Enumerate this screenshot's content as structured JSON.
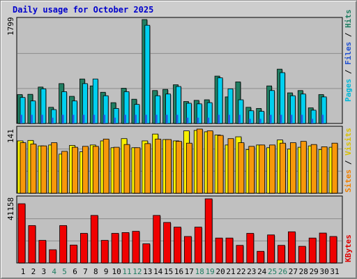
{
  "title": "Daily usage for October 2025",
  "colors": {
    "pages": "#00d0f0",
    "files": "#2060e0",
    "hits": "#207e62",
    "visits": "#f8f000",
    "sites": "#f8980a",
    "kbytes": "#f00000",
    "background": "#c0c0c0",
    "grid": "#8c8c8c",
    "weekend_label": "#207e62",
    "weekday_label": "#000000"
  },
  "legend": {
    "top": [
      {
        "text": "Pages",
        "color": "#00b8d8"
      },
      {
        "text": " / ",
        "color": "#000000"
      },
      {
        "text": "Files",
        "color": "#2050d0"
      },
      {
        "text": " / ",
        "color": "#000000"
      },
      {
        "text": "Hits",
        "color": "#207e62"
      }
    ],
    "middle": [
      {
        "text": "Sites",
        "color": "#f08000"
      },
      {
        "text": " / ",
        "color": "#000000"
      },
      {
        "text": "Visits",
        "color": "#d8c000"
      }
    ],
    "bottom": [
      {
        "text": "KBytes",
        "color": "#e00000"
      }
    ]
  },
  "chart_data": [
    {
      "type": "bar",
      "panel": "hits-files-pages",
      "ymax_label": "1799",
      "ylim": [
        0,
        1799
      ],
      "grid": true,
      "x": [
        "1",
        "2",
        "3",
        "4",
        "5",
        "6",
        "7",
        "8",
        "9",
        "10",
        "11",
        "12",
        "13",
        "14",
        "15",
        "16",
        "17",
        "18",
        "19",
        "20",
        "21",
        "22",
        "23",
        "24",
        "25",
        "26",
        "27",
        "28",
        "29",
        "30",
        "31"
      ],
      "weekend_days": [
        "4",
        "5",
        "11",
        "12",
        "18",
        "19",
        "25",
        "26"
      ],
      "series": [
        {
          "name": "Hits",
          "values": [
            500,
            505,
            630,
            280,
            690,
            470,
            770,
            650,
            540,
            360,
            610,
            420,
            1799,
            570,
            590,
            670,
            380,
            400,
            410,
            820,
            460,
            720,
            280,
            260,
            650,
            940,
            530,
            570,
            270,
            500,
            0
          ]
        },
        {
          "name": "Files",
          "values": [
            150,
            150,
            150,
            100,
            150,
            150,
            150,
            150,
            150,
            100,
            150,
            150,
            150,
            150,
            150,
            150,
            100,
            100,
            100,
            150,
            150,
            150,
            80,
            80,
            150,
            150,
            150,
            150,
            80,
            150,
            0
          ]
        },
        {
          "name": "Pages",
          "values": [
            450,
            390,
            600,
            240,
            550,
            390,
            690,
            770,
            480,
            260,
            550,
            330,
            1700,
            480,
            510,
            640,
            350,
            340,
            360,
            790,
            600,
            410,
            220,
            210,
            570,
            880,
            480,
            510,
            230,
            460,
            0
          ]
        }
      ]
    },
    {
      "type": "bar",
      "panel": "visits-sites",
      "ymax_label": "141",
      "ylim": [
        0,
        141
      ],
      "grid": true,
      "x": [
        "1",
        "2",
        "3",
        "4",
        "5",
        "6",
        "7",
        "8",
        "9",
        "10",
        "11",
        "12",
        "13",
        "14",
        "15",
        "16",
        "17",
        "18",
        "19",
        "20",
        "21",
        "22",
        "23",
        "24",
        "25",
        "26",
        "27",
        "28",
        "29",
        "30",
        "31"
      ],
      "series": [
        {
          "name": "Visits",
          "values": [
            115,
            116,
            104,
            106,
            86,
            105,
            91,
            106,
            115,
            100,
            120,
            100,
            115,
            130,
            118,
            115,
            137,
            138,
            135,
            128,
            106,
            124,
            96,
            106,
            100,
            117,
            97,
            101,
            104,
            96,
            101
          ]
        },
        {
          "name": "Sites",
          "values": [
            111,
            108,
            104,
            111,
            92,
            101,
            103,
            103,
            119,
            101,
            107,
            100,
            109,
            119,
            118,
            114,
            110,
            141,
            137,
            127,
            120,
            111,
            103,
            106,
            106,
            110,
            111,
            114,
            107,
            102,
            110
          ]
        }
      ]
    },
    {
      "type": "bar",
      "panel": "kbytes",
      "ymax_label": "41158",
      "ylim": [
        0,
        41158
      ],
      "grid": true,
      "x": [
        "1",
        "2",
        "3",
        "4",
        "5",
        "6",
        "7",
        "8",
        "9",
        "10",
        "11",
        "12",
        "13",
        "14",
        "15",
        "16",
        "17",
        "18",
        "19",
        "20",
        "21",
        "22",
        "23",
        "24",
        "25",
        "26",
        "27",
        "28",
        "29",
        "30",
        "31"
      ],
      "series": [
        {
          "name": "KBytes",
          "values": [
            38000,
            24000,
            14500,
            8500,
            24000,
            11500,
            19000,
            30500,
            14500,
            19000,
            19500,
            20300,
            12300,
            30500,
            26000,
            23000,
            17000,
            23000,
            41158,
            16000,
            16000,
            11300,
            19000,
            7500,
            18000,
            11300,
            20000,
            10700,
            16000,
            19200,
            17000
          ]
        }
      ]
    }
  ]
}
